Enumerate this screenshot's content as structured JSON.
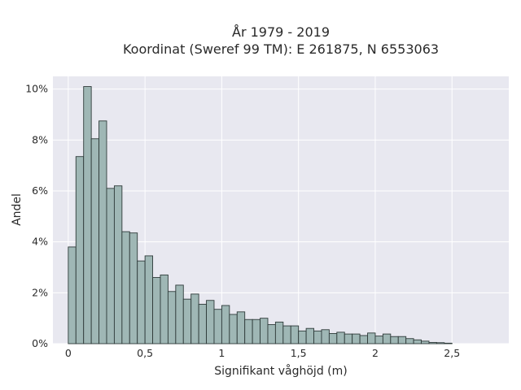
{
  "chart_data": {
    "type": "bar",
    "title_line1": "År 1979 - 2019",
    "title_line2": "Koordinat (Sweref 99 TM): E 261875, N 6553063",
    "xlabel": "Signifikant våghöjd (m)",
    "ylabel": "Andel",
    "xlim": [
      -0.1,
      2.87
    ],
    "ylim": [
      0,
      10.5
    ],
    "grid": true,
    "x_ticks": [
      {
        "value": 0,
        "label": "0"
      },
      {
        "value": 0.5,
        "label": "0,5"
      },
      {
        "value": 1,
        "label": "1"
      },
      {
        "value": 1.5,
        "label": "1,5"
      },
      {
        "value": 2,
        "label": "2"
      },
      {
        "value": 2.5,
        "label": "2,5"
      }
    ],
    "y_ticks": [
      {
        "value": 0,
        "label": "0%"
      },
      {
        "value": 2,
        "label": "2%"
      },
      {
        "value": 4,
        "label": "4%"
      },
      {
        "value": 6,
        "label": "6%"
      },
      {
        "value": 8,
        "label": "8%"
      },
      {
        "value": 10,
        "label": "10%"
      }
    ],
    "bin_width": 0.05,
    "bin_start": 0,
    "values": [
      3.8,
      7.35,
      10.1,
      8.05,
      8.75,
      6.1,
      6.2,
      4.4,
      4.35,
      3.25,
      3.45,
      2.6,
      2.7,
      2.05,
      2.3,
      1.75,
      1.95,
      1.55,
      1.7,
      1.35,
      1.5,
      1.15,
      1.25,
      0.95,
      0.95,
      1.0,
      0.75,
      0.85,
      0.7,
      0.7,
      0.5,
      0.6,
      0.5,
      0.55,
      0.4,
      0.45,
      0.38,
      0.38,
      0.32,
      0.42,
      0.3,
      0.38,
      0.28,
      0.28,
      0.2,
      0.15,
      0.1,
      0.05,
      0.04,
      0.02
    ]
  },
  "colors": {
    "plot_background": "#e8e8f0",
    "bar_fill": "#9fb7b5",
    "bar_edge": "#2f3b3a",
    "grid": "#ffffff"
  }
}
